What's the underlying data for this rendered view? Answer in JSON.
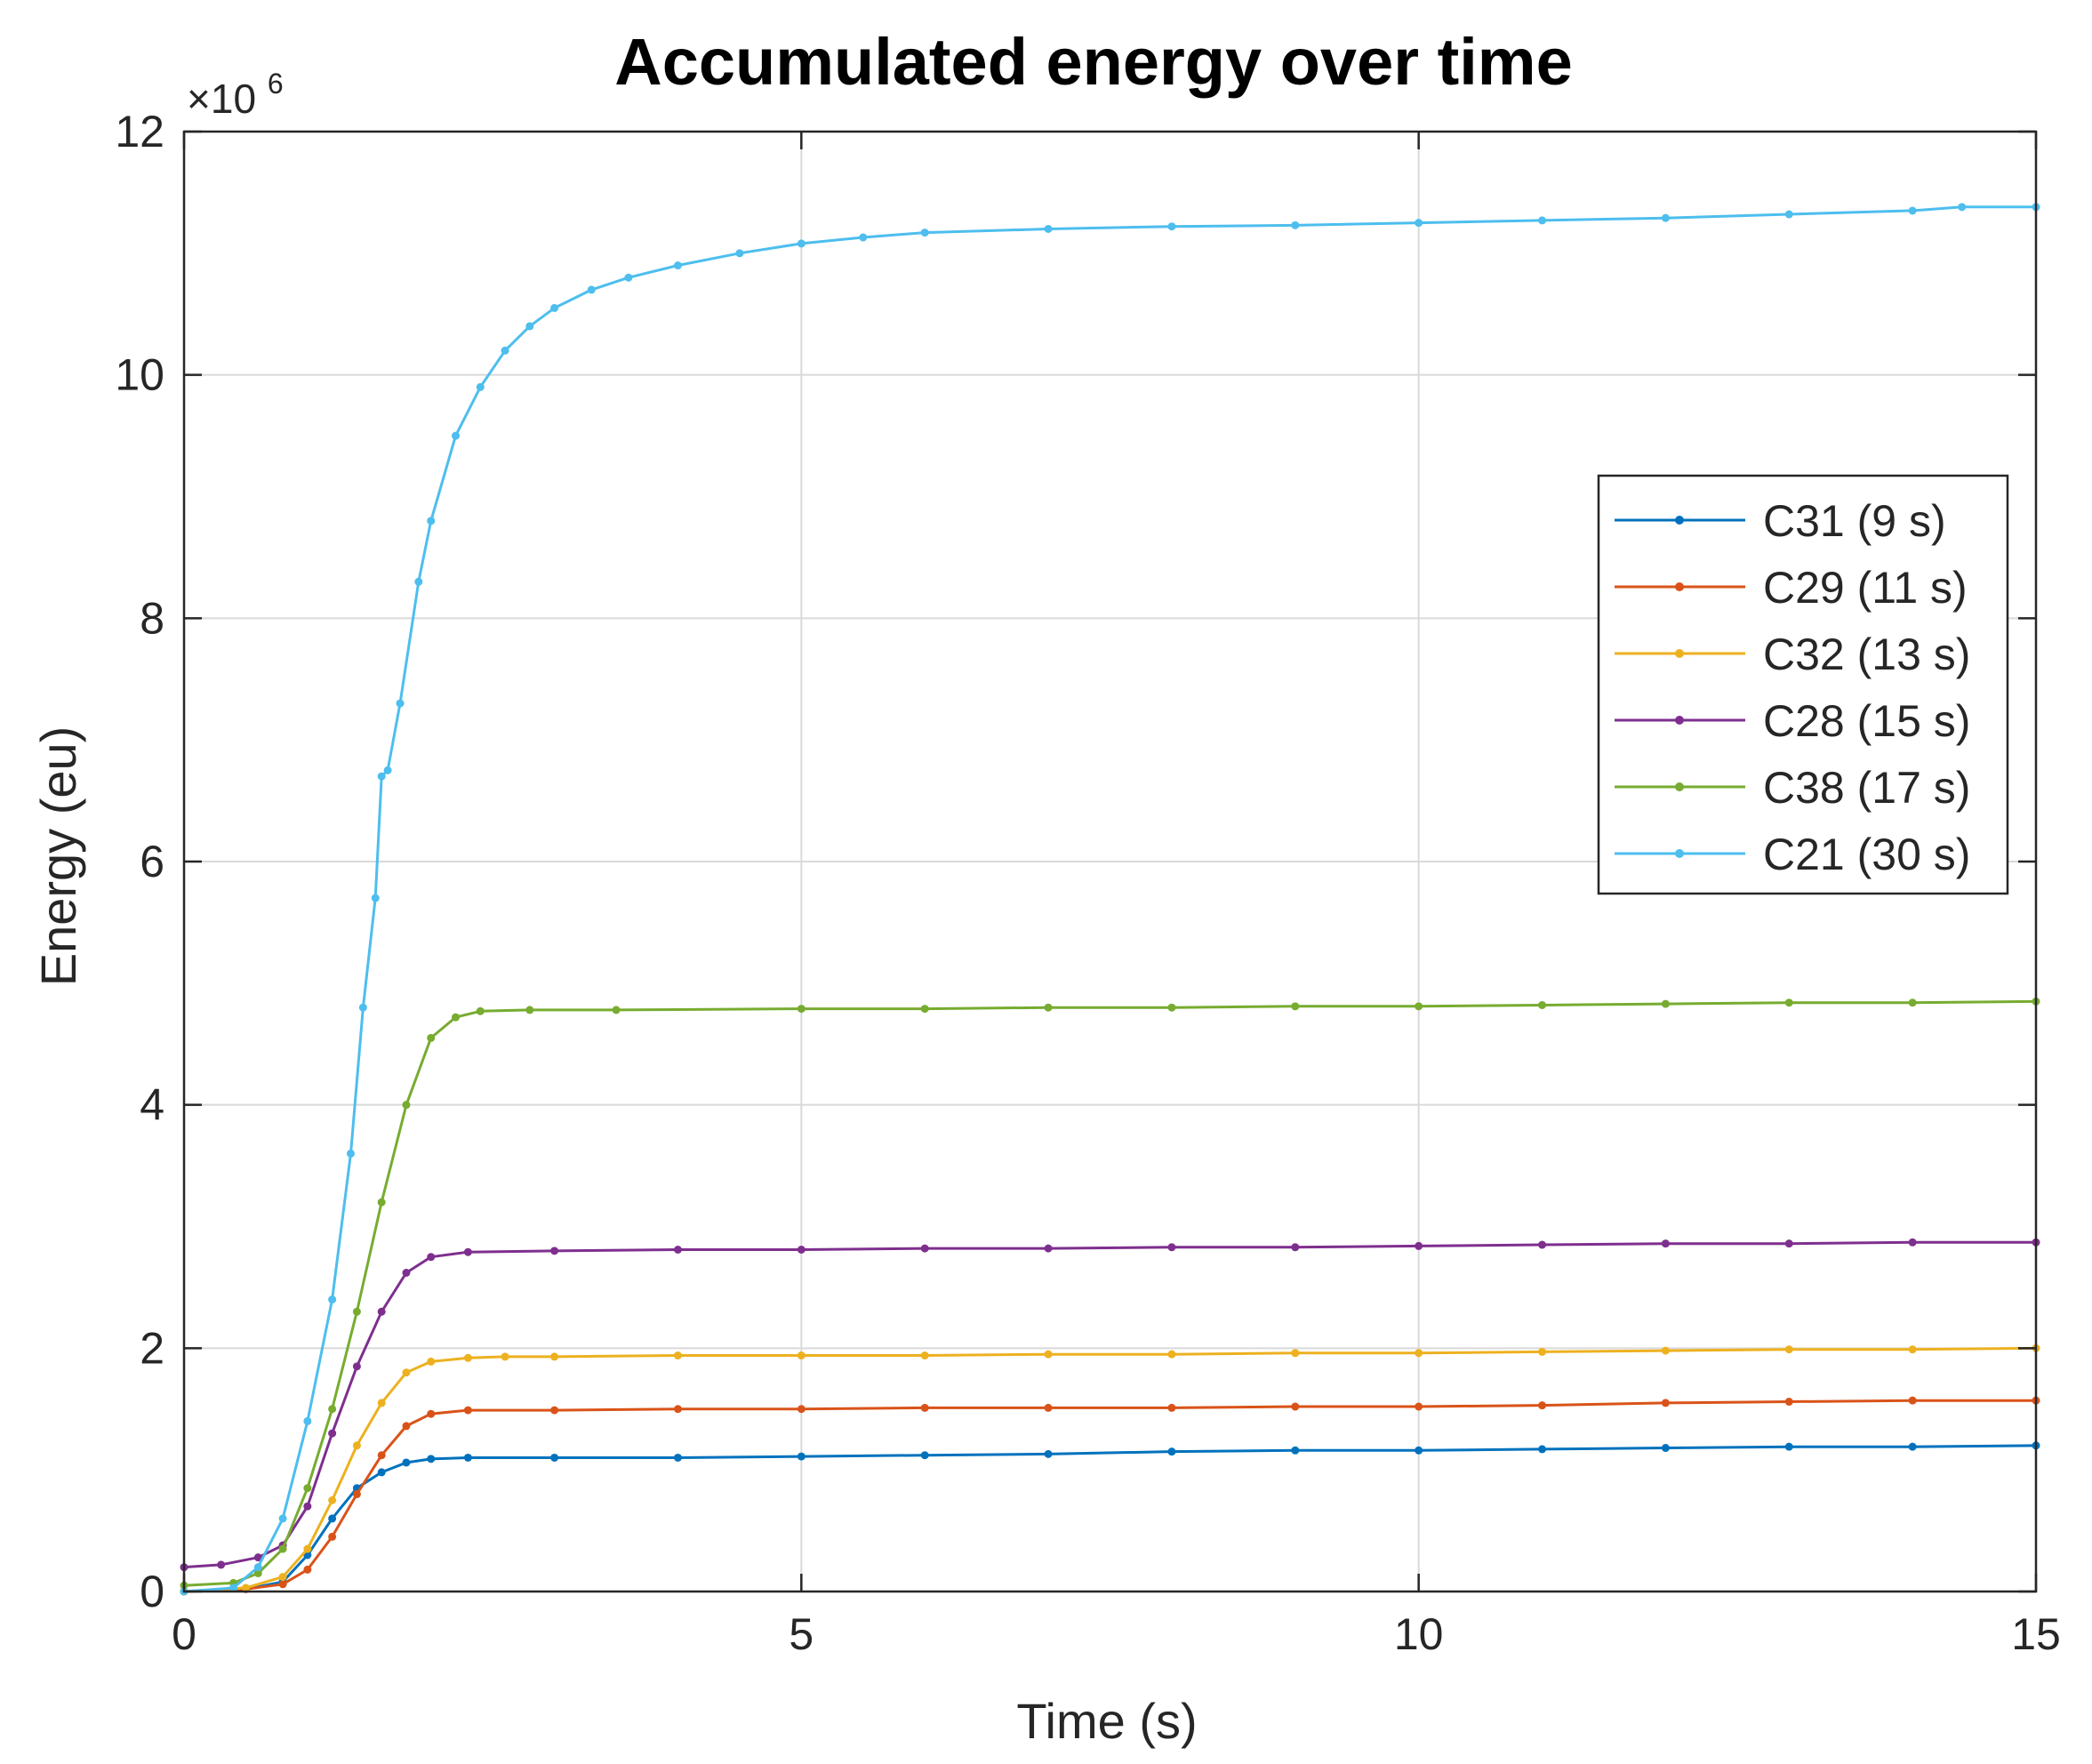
{
  "chart_data": {
    "type": "line",
    "title": "Accumulated energy over time",
    "xlabel": "Time (s)",
    "ylabel": "Energy (eu)",
    "y_exponent_label": "×10",
    "y_exponent_power": "6",
    "xlim": [
      0,
      15
    ],
    "ylim": [
      0,
      12
    ],
    "x_ticks": [
      0,
      5,
      10,
      15
    ],
    "x_tick_labels": [
      "0",
      "5",
      "10",
      "15"
    ],
    "y_ticks": [
      0,
      2,
      4,
      6,
      8,
      10,
      12
    ],
    "y_tick_labels": [
      "0",
      "2",
      "4",
      "6",
      "8",
      "10",
      "12"
    ],
    "grid": true,
    "legend_position": "right-upper-middle",
    "series": [
      {
        "name": "C31 (9 s)",
        "color": "#0072BD",
        "x": [
          0,
          0.5,
          0.8,
          1.0,
          1.2,
          1.4,
          1.6,
          1.8,
          2.0,
          2.3,
          3.0,
          4.0,
          5.0,
          6.0,
          7.0,
          8.0,
          9.0,
          10.0,
          11.0,
          12.0,
          13.0,
          14.0,
          15.0
        ],
        "y": [
          0.0,
          0.02,
          0.08,
          0.3,
          0.6,
          0.85,
          0.98,
          1.06,
          1.09,
          1.1,
          1.1,
          1.1,
          1.11,
          1.12,
          1.13,
          1.15,
          1.16,
          1.16,
          1.17,
          1.18,
          1.19,
          1.19,
          1.2
        ]
      },
      {
        "name": "C29 (11 s)",
        "color": "#D95319",
        "x": [
          0,
          0.5,
          0.8,
          1.0,
          1.2,
          1.4,
          1.6,
          1.8,
          2.0,
          2.3,
          3.0,
          4.0,
          5.0,
          6.0,
          7.0,
          8.0,
          9.0,
          10.0,
          11.0,
          12.0,
          13.0,
          14.0,
          15.0
        ],
        "y": [
          0.0,
          0.02,
          0.06,
          0.18,
          0.45,
          0.8,
          1.12,
          1.36,
          1.46,
          1.49,
          1.49,
          1.5,
          1.5,
          1.51,
          1.51,
          1.51,
          1.52,
          1.52,
          1.53,
          1.55,
          1.56,
          1.57,
          1.57
        ]
      },
      {
        "name": "C32 (13 s)",
        "color": "#EDB120",
        "x": [
          0,
          0.5,
          0.8,
          1.0,
          1.2,
          1.4,
          1.6,
          1.8,
          2.0,
          2.3,
          2.6,
          3.0,
          4.0,
          5.0,
          6.0,
          7.0,
          8.0,
          9.0,
          10.0,
          11.0,
          12.0,
          13.0,
          14.0,
          15.0
        ],
        "y": [
          0.0,
          0.03,
          0.12,
          0.35,
          0.75,
          1.2,
          1.55,
          1.8,
          1.89,
          1.92,
          1.93,
          1.93,
          1.94,
          1.94,
          1.94,
          1.95,
          1.95,
          1.96,
          1.96,
          1.97,
          1.98,
          1.99,
          1.99,
          2.0
        ]
      },
      {
        "name": "C28 (15 s)",
        "color": "#7E2F8E",
        "x": [
          0,
          0.3,
          0.6,
          0.8,
          1.0,
          1.2,
          1.4,
          1.6,
          1.8,
          2.0,
          2.3,
          3.0,
          4.0,
          5.0,
          6.0,
          7.0,
          8.0,
          9.0,
          10.0,
          11.0,
          12.0,
          13.0,
          14.0,
          15.0
        ],
        "y": [
          0.2,
          0.22,
          0.28,
          0.38,
          0.7,
          1.3,
          1.85,
          2.3,
          2.62,
          2.75,
          2.79,
          2.8,
          2.81,
          2.81,
          2.82,
          2.82,
          2.83,
          2.83,
          2.84,
          2.85,
          2.86,
          2.86,
          2.87,
          2.87
        ]
      },
      {
        "name": "C38 (17 s)",
        "color": "#77AC30",
        "x": [
          0,
          0.4,
          0.6,
          0.8,
          1.0,
          1.2,
          1.4,
          1.6,
          1.8,
          2.0,
          2.2,
          2.4,
          2.8,
          3.5,
          5.0,
          6.0,
          7.0,
          8.0,
          9.0,
          10.0,
          11.0,
          12.0,
          13.0,
          14.0,
          15.0
        ],
        "y": [
          0.05,
          0.07,
          0.15,
          0.35,
          0.85,
          1.5,
          2.3,
          3.2,
          4.0,
          4.55,
          4.72,
          4.77,
          4.78,
          4.78,
          4.79,
          4.79,
          4.8,
          4.8,
          4.81,
          4.81,
          4.82,
          4.83,
          4.84,
          4.84,
          4.85
        ]
      },
      {
        "name": "C21 (30 s)",
        "color": "#4DBEEE",
        "x": [
          0,
          0.4,
          0.6,
          0.8,
          1.0,
          1.2,
          1.35,
          1.45,
          1.55,
          1.6,
          1.65,
          1.75,
          1.9,
          2.0,
          2.2,
          2.4,
          2.6,
          2.8,
          3.0,
          3.3,
          3.6,
          4.0,
          4.5,
          5.0,
          5.5,
          6.0,
          7.0,
          8.0,
          9.0,
          10.0,
          11.0,
          12.0,
          13.0,
          14.0,
          14.4,
          15.0
        ],
        "y": [
          0.0,
          0.03,
          0.2,
          0.6,
          1.4,
          2.4,
          3.6,
          4.8,
          5.7,
          6.7,
          6.75,
          7.3,
          8.3,
          8.8,
          9.5,
          9.9,
          10.2,
          10.4,
          10.55,
          10.7,
          10.8,
          10.9,
          11.0,
          11.08,
          11.13,
          11.17,
          11.2,
          11.22,
          11.23,
          11.25,
          11.27,
          11.29,
          11.32,
          11.35,
          11.38,
          11.38
        ]
      }
    ]
  }
}
